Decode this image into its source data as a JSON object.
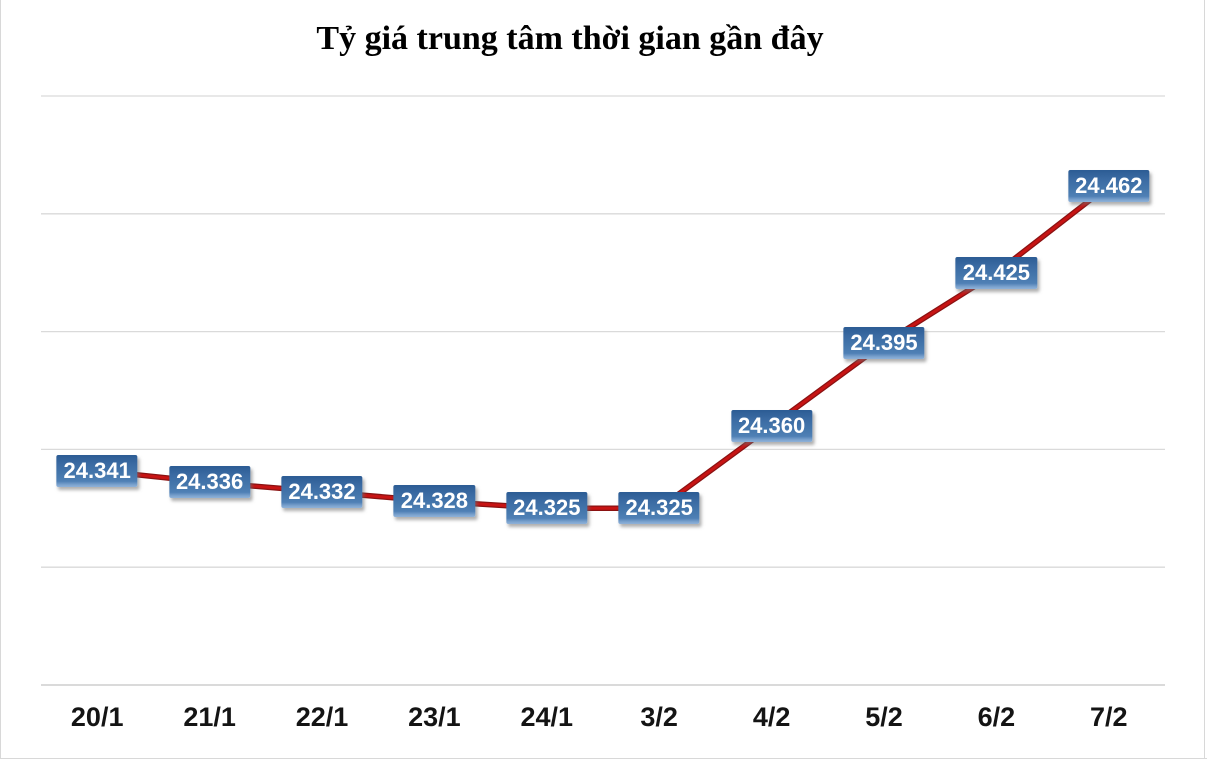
{
  "title": "Tỷ giá trung tâm thời gian gần đây",
  "colors": {
    "line_outer": "#8a1212",
    "line_inner": "#c71414",
    "gridline": "#dadada",
    "axis_line": "#c3c3c3",
    "label_text": "#ffffff",
    "label_bg_accent": "#4577ac",
    "title_text": "#000000",
    "x_label_text": "#141414"
  },
  "chart_data": {
    "type": "line",
    "title": "Tỷ giá trung tâm thời gian gần đây",
    "categories": [
      "20/1",
      "21/1",
      "22/1",
      "23/1",
      "24/1",
      "3/2",
      "4/2",
      "5/2",
      "6/2",
      "7/2"
    ],
    "values": [
      24341,
      24336,
      24332,
      24328,
      24325,
      24325,
      24360,
      24395,
      24425,
      24462
    ],
    "point_labels": [
      "24.341",
      "24.336",
      "24.332",
      "24.328",
      "24.325",
      "24.325",
      "24.360",
      "24.395",
      "24.425",
      "24.462"
    ],
    "series_name": "Tỷ giá trung tâm",
    "xlabel": "",
    "ylabel": "",
    "ylim": [
      24250,
      24500
    ],
    "gridline_step": 50,
    "grid": true,
    "legend_position": "none",
    "y_axis_labels_visible": false
  }
}
